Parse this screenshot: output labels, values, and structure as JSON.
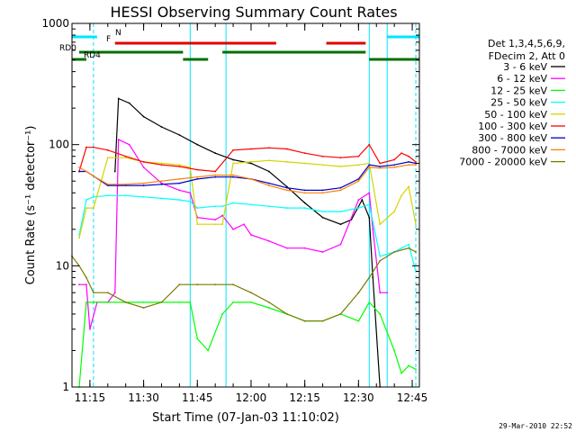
{
  "chart_data": {
    "type": "line",
    "title": "HESSI Observing Summary Count Rates",
    "xlabel": "Start Time (07-Jan-03 11:10:02)",
    "ylabel": "Count Rate (s⁻¹ detector⁻¹)",
    "y_scale": "log",
    "ylim": [
      1,
      1000
    ],
    "xlim": [
      "11:10",
      "12:47"
    ],
    "y_ticks": [
      "1",
      "10",
      "100",
      "1000"
    ],
    "x_ticks": [
      "11:15",
      "11:30",
      "11:45",
      "12:00",
      "12:15",
      "12:30",
      "12:45"
    ],
    "timestamp": "29-Mar-2010 22:52",
    "legend": {
      "placement": "right",
      "header": [
        "Det 1,3,4,5,6,9,",
        "FDecim 2, Att 0"
      ]
    },
    "flags": [
      {
        "label": "N",
        "color": "#00e5ff",
        "segments": [
          [
            "11:10",
            "11:17"
          ],
          [
            "12:38",
            "12:47"
          ]
        ]
      },
      {
        "label": "F",
        "color": "#e00000",
        "segments": [
          [
            "11:22",
            "12:07"
          ],
          [
            "12:21",
            "12:32"
          ]
        ]
      },
      {
        "label": "RD0",
        "color": "#007000",
        "segments": [
          [
            "11:12",
            "11:41"
          ],
          [
            "11:52",
            "12:32"
          ]
        ]
      },
      {
        "label": "RD4",
        "color": "#007000",
        "segments": [
          [
            "11:10",
            "11:14"
          ],
          [
            "11:41",
            "11:48"
          ],
          [
            "12:33",
            "12:47"
          ]
        ]
      }
    ],
    "markers": {
      "dashed": [
        "11:16",
        "12:46"
      ],
      "solid": [
        "11:10",
        "11:43",
        "11:53",
        "12:33",
        "12:38"
      ]
    },
    "series": [
      {
        "name": "3 - 6 keV",
        "color": "#000000",
        "x": [
          "11:22",
          "11:23",
          "11:26",
          "11:30",
          "11:35",
          "11:40",
          "11:45",
          "11:50",
          "11:55",
          "12:00",
          "12:05",
          "12:10",
          "12:15",
          "12:20",
          "12:25",
          "12:28",
          "12:31",
          "12:33",
          "12:34",
          "12:36"
        ],
        "y": [
          60,
          240,
          220,
          170,
          140,
          120,
          100,
          85,
          75,
          70,
          60,
          45,
          33,
          25,
          22,
          24,
          35,
          25,
          8,
          1
        ]
      },
      {
        "name": "6 - 12 keV",
        "color": "#ff00ff",
        "x": [
          "11:12",
          "11:14",
          "11:15",
          "11:17",
          "11:20",
          "11:22",
          "11:23",
          "11:26",
          "11:30",
          "11:35",
          "11:40",
          "11:43",
          "11:45",
          "11:50",
          "11:52",
          "11:55",
          "11:58",
          "12:00",
          "12:05",
          "12:10",
          "12:15",
          "12:20",
          "12:25",
          "12:30",
          "12:33",
          "12:34",
          "12:36",
          "12:38"
        ],
        "y": [
          7,
          7,
          3,
          5,
          5,
          6,
          110,
          100,
          65,
          48,
          42,
          40,
          25,
          24,
          26,
          20,
          22,
          18,
          16,
          14,
          14,
          13,
          15,
          35,
          40,
          20,
          6,
          6
        ]
      },
      {
        "name": "12 - 25 keV",
        "color": "#00ff00",
        "x": [
          "11:12",
          "11:14",
          "11:16",
          "11:20",
          "11:25",
          "11:30",
          "11:35",
          "11:40",
          "11:43",
          "11:45",
          "11:48",
          "11:52",
          "11:55",
          "12:00",
          "12:05",
          "12:10",
          "12:15",
          "12:20",
          "12:25",
          "12:30",
          "12:33",
          "12:36",
          "12:40",
          "12:42",
          "12:44",
          "12:46"
        ],
        "y": [
          1,
          5,
          5,
          5,
          5,
          5,
          5,
          5,
          5,
          2.5,
          2,
          4,
          5,
          5,
          4.5,
          4,
          3.5,
          3.5,
          4,
          3.5,
          5,
          4,
          2,
          1.3,
          1.5,
          1.4
        ]
      },
      {
        "name": "25 - 50 keV",
        "color": "#00ffff",
        "x": [
          "11:12",
          "11:14",
          "11:16",
          "11:20",
          "11:25",
          "11:30",
          "11:35",
          "11:40",
          "11:43",
          "11:45",
          "11:50",
          "11:52",
          "11:55",
          "12:00",
          "12:05",
          "12:10",
          "12:15",
          "12:20",
          "12:25",
          "12:30",
          "12:33",
          "12:36",
          "12:40",
          "12:42",
          "12:44",
          "12:46"
        ],
        "y": [
          18,
          35,
          37,
          38,
          38,
          37,
          36,
          35,
          34,
          30,
          31,
          31,
          33,
          32,
          31,
          30,
          30,
          28,
          28,
          30,
          32,
          12,
          13,
          14,
          15,
          9
        ]
      },
      {
        "name": "50 - 100 keV",
        "color": "#d4d400",
        "x": [
          "11:12",
          "11:14",
          "11:16",
          "11:20",
          "11:25",
          "11:30",
          "11:35",
          "11:40",
          "11:43",
          "11:45",
          "11:50",
          "11:52",
          "11:55",
          "12:00",
          "12:05",
          "12:10",
          "12:15",
          "12:20",
          "12:25",
          "12:30",
          "12:33",
          "12:36",
          "12:40",
          "12:42",
          "12:44",
          "12:46"
        ],
        "y": [
          17,
          30,
          30,
          78,
          78,
          72,
          70,
          68,
          65,
          22,
          22,
          22,
          70,
          72,
          74,
          72,
          70,
          68,
          66,
          68,
          70,
          22,
          28,
          38,
          45,
          22
        ]
      },
      {
        "name": "100 - 300 keV",
        "color": "#ff0000",
        "x": [
          "11:12",
          "11:14",
          "11:16",
          "11:20",
          "11:25",
          "11:30",
          "11:35",
          "11:40",
          "11:45",
          "11:50",
          "11:55",
          "12:00",
          "12:05",
          "12:10",
          "12:15",
          "12:20",
          "12:25",
          "12:30",
          "12:33",
          "12:36",
          "12:40",
          "12:42",
          "12:44",
          "12:46"
        ],
        "y": [
          60,
          95,
          95,
          90,
          80,
          72,
          68,
          66,
          62,
          60,
          90,
          92,
          94,
          92,
          85,
          80,
          78,
          80,
          100,
          70,
          75,
          85,
          80,
          72
        ]
      },
      {
        "name": "300 - 800 keV",
        "color": "#0000cc",
        "x": [
          "11:12",
          "11:14",
          "11:16",
          "11:20",
          "11:25",
          "11:30",
          "11:35",
          "11:40",
          "11:45",
          "11:50",
          "11:55",
          "12:00",
          "12:05",
          "12:10",
          "12:15",
          "12:20",
          "12:25",
          "12:30",
          "12:33",
          "12:36",
          "12:40",
          "12:44",
          "12:46"
        ],
        "y": [
          60,
          60,
          55,
          46,
          46,
          46,
          47,
          48,
          52,
          54,
          54,
          52,
          48,
          44,
          42,
          42,
          44,
          52,
          68,
          66,
          68,
          72,
          70
        ]
      },
      {
        "name": "800 - 7000 keV",
        "color": "#ff8000",
        "x": [
          "11:12",
          "11:14",
          "11:16",
          "11:20",
          "11:25",
          "11:30",
          "11:35",
          "11:40",
          "11:45",
          "11:50",
          "11:55",
          "12:00",
          "12:05",
          "12:10",
          "12:15",
          "12:20",
          "12:25",
          "12:30",
          "12:33",
          "12:36",
          "12:40",
          "12:44",
          "12:46"
        ],
        "y": [
          65,
          60,
          55,
          47,
          47,
          48,
          50,
          52,
          54,
          56,
          56,
          52,
          46,
          42,
          40,
          40,
          42,
          50,
          65,
          64,
          65,
          68,
          68
        ]
      },
      {
        "name": "7000 - 20000 keV",
        "color": "#7a7a00",
        "x": [
          "11:10",
          "11:12",
          "11:14",
          "11:16",
          "11:20",
          "11:25",
          "11:30",
          "11:35",
          "11:40",
          "11:45",
          "11:50",
          "11:55",
          "12:00",
          "12:05",
          "12:10",
          "12:15",
          "12:20",
          "12:25",
          "12:30",
          "12:33",
          "12:36",
          "12:40",
          "12:44",
          "12:46"
        ],
        "y": [
          12,
          10,
          8,
          6,
          6,
          5,
          4.5,
          5,
          7,
          7,
          7,
          7,
          6,
          5,
          4,
          3.5,
          3.5,
          4,
          6,
          8,
          11,
          13,
          14,
          13
        ]
      }
    ]
  }
}
